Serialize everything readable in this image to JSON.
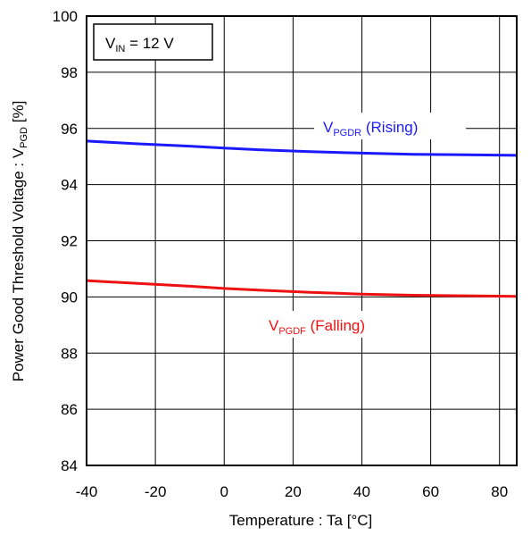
{
  "chart_data": {
    "type": "line",
    "xlabel": "Temperature : Ta [°C]",
    "ylabel": "Power Good Threshold Voltage : V",
    "ylabel_sub": "PGD",
    "ylabel_unit": "[%]",
    "xlim": [
      -40,
      85
    ],
    "ylim": [
      84,
      100
    ],
    "xticks": [
      -40,
      -20,
      0,
      20,
      40,
      60,
      80
    ],
    "yticks": [
      84,
      86,
      88,
      90,
      92,
      94,
      96,
      98,
      100
    ],
    "grid": true,
    "condition": {
      "main": "V",
      "sub": "IN",
      "rest": " = 12 V"
    },
    "series": [
      {
        "name": "Rising",
        "label_main": "V",
        "label_sub": "PGDR",
        "label_rest": " (Rising)",
        "color": "#1a1aff",
        "x": [
          -40,
          -25,
          -10,
          0,
          10,
          25,
          40,
          55,
          70,
          85
        ],
        "y": [
          95.55,
          95.45,
          95.37,
          95.3,
          95.24,
          95.17,
          95.12,
          95.08,
          95.06,
          95.04
        ]
      },
      {
        "name": "Falling",
        "label_main": "V",
        "label_sub": "PGDF",
        "label_rest": " (Falling)",
        "color": "#ee1111",
        "x": [
          -40,
          -25,
          -10,
          0,
          10,
          25,
          40,
          55,
          70,
          85
        ],
        "y": [
          90.58,
          90.48,
          90.38,
          90.3,
          90.24,
          90.16,
          90.1,
          90.06,
          90.04,
          90.02
        ]
      }
    ]
  }
}
